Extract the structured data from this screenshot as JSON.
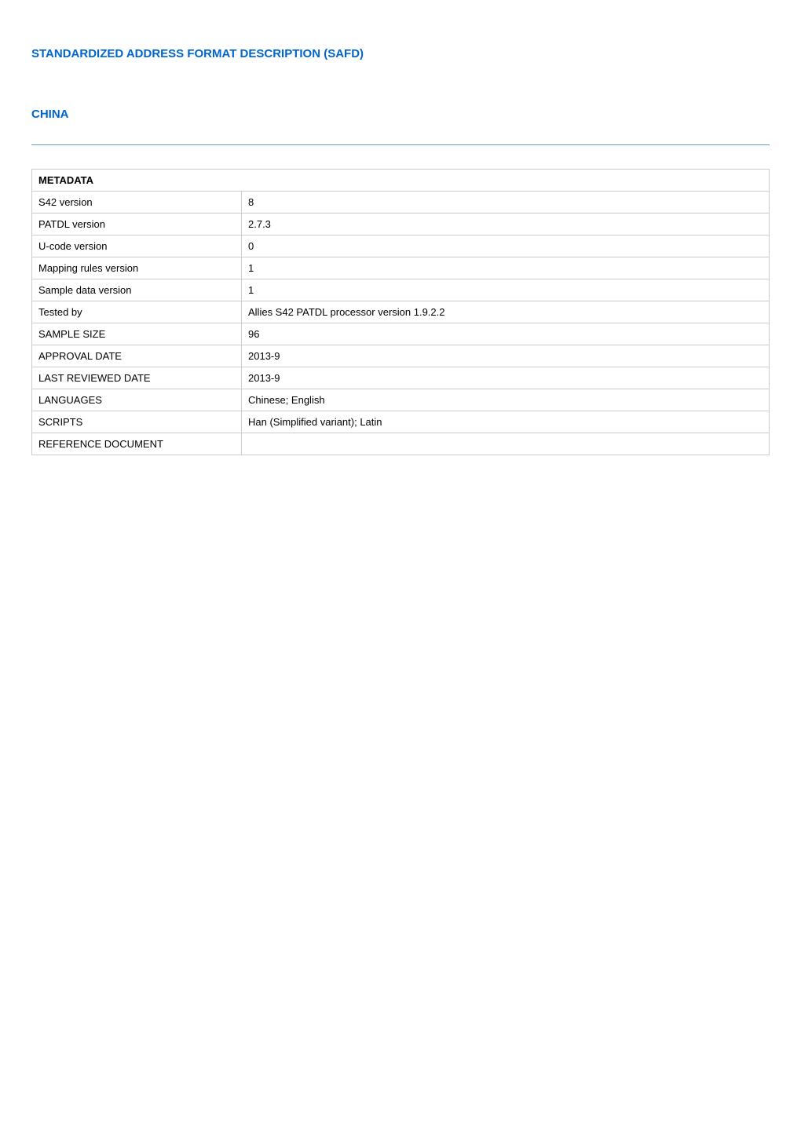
{
  "title": "STANDARDIZED ADDRESS FORMAT DESCRIPTION (SAFD)",
  "subtitle": "CHINA",
  "metadata": {
    "header": "METADATA",
    "rows": [
      {
        "label": "S42 version",
        "value": "8"
      },
      {
        "label": "PATDL version",
        "value": "2.7.3"
      },
      {
        "label": "U-code version",
        "value": "0"
      },
      {
        "label": "Mapping rules version",
        "value": "1"
      },
      {
        "label": "Sample data version",
        "value": "1"
      },
      {
        "label": "Tested by",
        "value": "Allies S42 PATDL processor version 1.9.2.2"
      },
      {
        "label": "SAMPLE SIZE",
        "value": "96"
      },
      {
        "label": "APPROVAL DATE",
        "value": "2013-9"
      },
      {
        "label": "LAST REVIEWED DATE",
        "value": "2013-9"
      },
      {
        "label": "LANGUAGES",
        "value": "Chinese; English"
      },
      {
        "label": "SCRIPTS",
        "value": "Han (Simplified variant); Latin"
      },
      {
        "label": "REFERENCE DOCUMENT",
        "value": ""
      }
    ]
  }
}
